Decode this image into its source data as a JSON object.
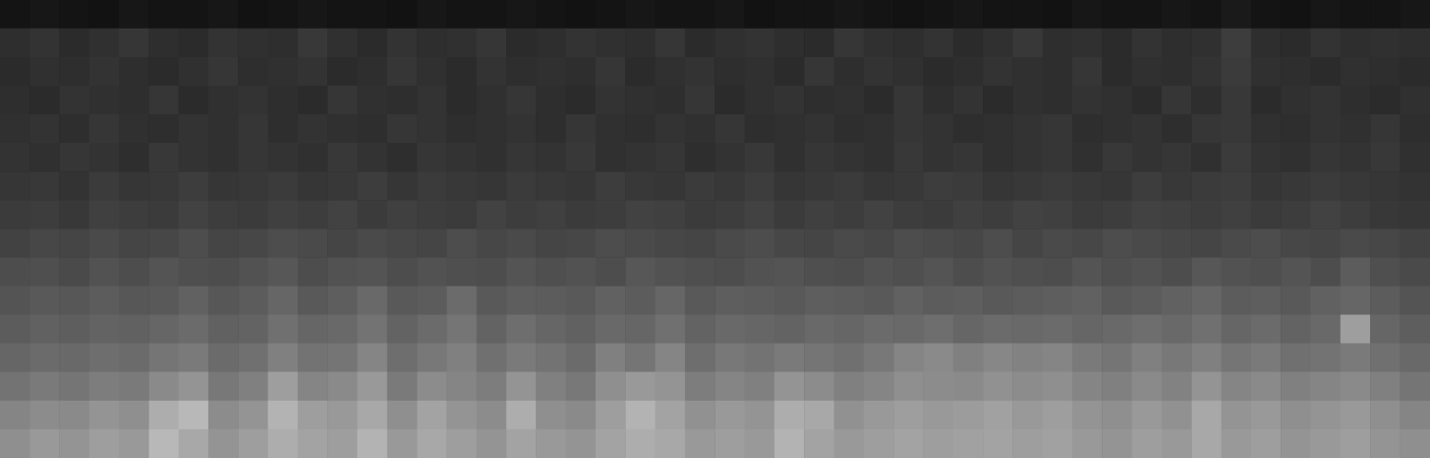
{
  "chart_data": {
    "type": "heatmap",
    "tick_labels": false,
    "grid": false,
    "zlim": [
      0,
      100
    ],
    "cells": [
      [
        8,
        9,
        8,
        7,
        9,
        8,
        8,
        9,
        7,
        8,
        9,
        8,
        8,
        7,
        9,
        8,
        8,
        9,
        8,
        7,
        8,
        9,
        8,
        8,
        9,
        7,
        8,
        8,
        9,
        8,
        7,
        8,
        9,
        8,
        8,
        7,
        9,
        8,
        8,
        9,
        8,
        10,
        8,
        7,
        9,
        8,
        8,
        9
      ],
      [
        18,
        20,
        17,
        19,
        21,
        18,
        17,
        20,
        19,
        18,
        22,
        19,
        17,
        20,
        18,
        19,
        21,
        17,
        18,
        20,
        19,
        18,
        21,
        17,
        19,
        20,
        18,
        17,
        21,
        19,
        18,
        20,
        17,
        19,
        22,
        18,
        19,
        17,
        20,
        18,
        19,
        24,
        18,
        17,
        20,
        18,
        19,
        18
      ],
      [
        17,
        19,
        18,
        20,
        18,
        17,
        19,
        21,
        18,
        19,
        20,
        17,
        18,
        21,
        19,
        17,
        20,
        18,
        19,
        18,
        21,
        17,
        19,
        20,
        18,
        19,
        17,
        21,
        18,
        20,
        19,
        17,
        18,
        20,
        19,
        18,
        21,
        17,
        19,
        18,
        20,
        23,
        19,
        18,
        17,
        19,
        18,
        17
      ],
      [
        18,
        17,
        20,
        19,
        18,
        21,
        17,
        19,
        20,
        18,
        17,
        21,
        19,
        18,
        20,
        17,
        19,
        21,
        18,
        17,
        20,
        19,
        18,
        21,
        17,
        19,
        20,
        18,
        19,
        17,
        21,
        18,
        20,
        17,
        19,
        18,
        20,
        19,
        17,
        21,
        18,
        22,
        17,
        19,
        20,
        18,
        17,
        19
      ],
      [
        19,
        20,
        18,
        21,
        19,
        18,
        20,
        19,
        21,
        18,
        20,
        19,
        18,
        21,
        20,
        18,
        19,
        20,
        18,
        21,
        19,
        18,
        20,
        19,
        21,
        18,
        19,
        20,
        18,
        19,
        21,
        20,
        18,
        19,
        20,
        21,
        18,
        19,
        20,
        18,
        21,
        22,
        19,
        18,
        20,
        19,
        21,
        18
      ],
      [
        20,
        19,
        21,
        20,
        18,
        22,
        20,
        19,
        21,
        20,
        19,
        22,
        20,
        18,
        21,
        20,
        19,
        21,
        20,
        22,
        19,
        20,
        21,
        18,
        20,
        22,
        19,
        21,
        20,
        19,
        22,
        20,
        21,
        19,
        20,
        21,
        19,
        22,
        20,
        21,
        19,
        23,
        20,
        19,
        21,
        20,
        22,
        19
      ],
      [
        21,
        22,
        20,
        23,
        21,
        22,
        24,
        21,
        22,
        23,
        21,
        22,
        24,
        21,
        23,
        22,
        21,
        23,
        22,
        21,
        24,
        22,
        21,
        23,
        22,
        24,
        21,
        22,
        23,
        21,
        22,
        24,
        23,
        21,
        22,
        23,
        22,
        21,
        24,
        22,
        23,
        24,
        21,
        22,
        23,
        22,
        21,
        20
      ],
      [
        23,
        24,
        22,
        25,
        24,
        23,
        26,
        24,
        23,
        25,
        24,
        26,
        23,
        25,
        24,
        23,
        26,
        24,
        25,
        23,
        24,
        26,
        25,
        23,
        24,
        26,
        23,
        25,
        24,
        26,
        24,
        23,
        25,
        24,
        26,
        25,
        23,
        24,
        26,
        25,
        24,
        25,
        23,
        24,
        26,
        24,
        22,
        21
      ],
      [
        26,
        28,
        27,
        29,
        27,
        28,
        30,
        27,
        28,
        30,
        29,
        27,
        29,
        28,
        27,
        30,
        28,
        29,
        27,
        28,
        30,
        29,
        28,
        27,
        29,
        30,
        28,
        27,
        29,
        28,
        30,
        29,
        28,
        30,
        27,
        29,
        28,
        30,
        29,
        28,
        27,
        29,
        30,
        28,
        27,
        29,
        28,
        26
      ],
      [
        30,
        31,
        29,
        32,
        30,
        33,
        31,
        30,
        32,
        34,
        30,
        32,
        33,
        30,
        32,
        31,
        30,
        33,
        31,
        32,
        30,
        34,
        32,
        31,
        30,
        32,
        33,
        31,
        30,
        32,
        31,
        33,
        30,
        32,
        31,
        30,
        33,
        31,
        32,
        30,
        34,
        32,
        31,
        33,
        30,
        36,
        31,
        29
      ],
      [
        33,
        35,
        34,
        36,
        34,
        35,
        38,
        34,
        36,
        40,
        35,
        37,
        41,
        35,
        36,
        42,
        35,
        37,
        36,
        35,
        38,
        36,
        40,
        35,
        37,
        36,
        35,
        37,
        36,
        35,
        38,
        36,
        37,
        35,
        36,
        37,
        38,
        35,
        36,
        38,
        40,
        36,
        37,
        35,
        38,
        40,
        36,
        33
      ],
      [
        36,
        38,
        37,
        39,
        38,
        40,
        42,
        38,
        39,
        44,
        40,
        41,
        45,
        39,
        42,
        46,
        39,
        43,
        40,
        38,
        41,
        40,
        44,
        39,
        41,
        40,
        39,
        41,
        40,
        42,
        41,
        43,
        40,
        42,
        41,
        42,
        40,
        41,
        43,
        41,
        44,
        40,
        42,
        39,
        41,
        62,
        40,
        37
      ],
      [
        40,
        42,
        41,
        43,
        42,
        46,
        48,
        42,
        44,
        50,
        45,
        46,
        52,
        43,
        47,
        50,
        44,
        48,
        45,
        42,
        50,
        46,
        52,
        43,
        47,
        45,
        48,
        46,
        44,
        47,
        52,
        54,
        50,
        53,
        51,
        52,
        48,
        46,
        50,
        47,
        50,
        46,
        48,
        44,
        45,
        48,
        44,
        41
      ],
      [
        45,
        48,
        46,
        49,
        48,
        54,
        58,
        47,
        50,
        62,
        52,
        54,
        60,
        48,
        55,
        52,
        49,
        58,
        50,
        47,
        56,
        60,
        58,
        49,
        52,
        50,
        58,
        55,
        50,
        52,
        56,
        55,
        54,
        57,
        55,
        56,
        52,
        50,
        54,
        51,
        58,
        52,
        54,
        50,
        52,
        54,
        50,
        46
      ],
      [
        52,
        55,
        54,
        58,
        56,
        68,
        72,
        55,
        58,
        70,
        62,
        60,
        66,
        56,
        64,
        58,
        55,
        68,
        56,
        54,
        62,
        70,
        64,
        57,
        60,
        58,
        68,
        66,
        57,
        60,
        62,
        60,
        61,
        63,
        60,
        62,
        58,
        56,
        60,
        57,
        66,
        58,
        60,
        56,
        58,
        60,
        56,
        52
      ],
      [
        56,
        60,
        58,
        62,
        60,
        72,
        66,
        58,
        62,
        68,
        64,
        62,
        70,
        60,
        66,
        62,
        58,
        64,
        60,
        58,
        64,
        68,
        66,
        60,
        62,
        60,
        70,
        64,
        60,
        62,
        64,
        62,
        63,
        64,
        62,
        63,
        60,
        58,
        62,
        60,
        66,
        60,
        62,
        58,
        60,
        62,
        58,
        56
      ]
    ]
  }
}
